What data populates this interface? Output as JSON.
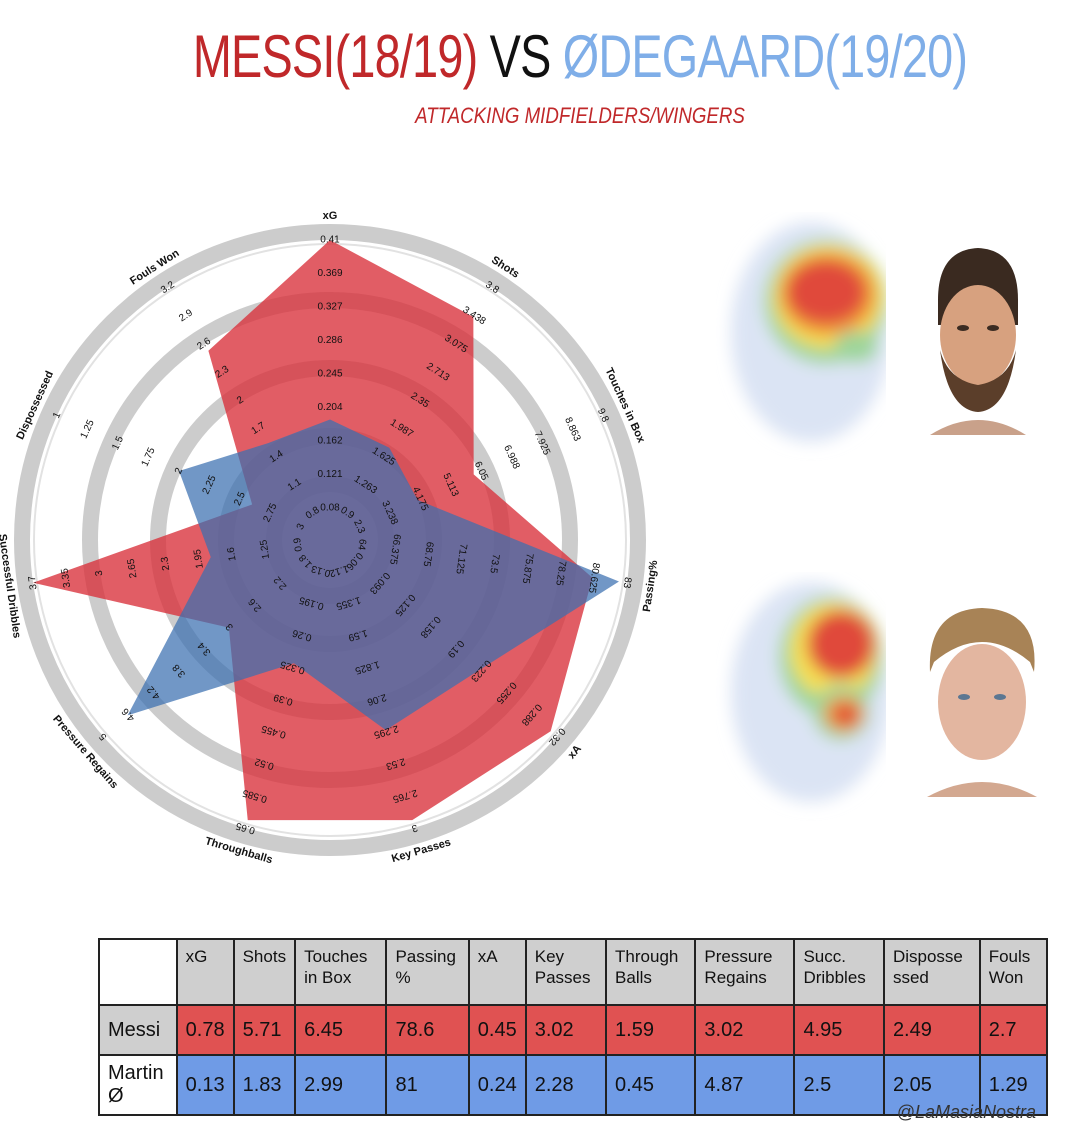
{
  "title": {
    "player1": "MESSI(18/19)",
    "vs": "VS",
    "player2": "ØDEGAARD(19/20)"
  },
  "subtitle": "ATTACKING MIDFIELDERS/WINGERS",
  "credit": "@LaMasiaNostra",
  "colors": {
    "messi": "#d9303a",
    "odegaard": "#3a6fb0",
    "title_red": "#c0282a",
    "title_blue": "#7faee8"
  },
  "chart_data": {
    "type": "radar",
    "axes": [
      {
        "label": "xG",
        "ticks": [
          "0.08",
          "0.121",
          "0.162",
          "0.204",
          "0.245",
          "0.286",
          "0.327",
          "0.369",
          "0.41"
        ]
      },
      {
        "label": "Shots",
        "ticks": [
          "0.9",
          "1.263",
          "1.625",
          "1.987",
          "2.35",
          "2.713",
          "3.075",
          "3.438",
          "3.8"
        ]
      },
      {
        "label": "Touches in Box",
        "ticks": [
          "2.3",
          "3.238",
          "4.175",
          "5.113",
          "6.05",
          "6.988",
          "7.925",
          "8.863",
          "9.8"
        ]
      },
      {
        "label": "Passing%",
        "ticks": [
          "64",
          "66.375",
          "68.75",
          "71.125",
          "73.5",
          "75.875",
          "78.25",
          "80.625",
          "83"
        ]
      },
      {
        "label": "xA",
        "ticks": [
          "0.06",
          "0.093",
          "0.125",
          "0.158",
          "0.19",
          "0.223",
          "0.255",
          "0.288",
          "0.32"
        ]
      },
      {
        "label": "Key Passes",
        "ticks": [
          "1.12",
          "1.355",
          "1.59",
          "1.825",
          "2.06",
          "2.295",
          "2.53",
          "2.765",
          "3"
        ]
      },
      {
        "label": "Throughballs",
        "ticks": [
          "0.13",
          "0.195",
          "0.26",
          "0.325",
          "0.39",
          "0.455",
          "0.52",
          "0.585",
          "0.65"
        ]
      },
      {
        "label": "Pressure Regains",
        "ticks": [
          "1.8",
          "2.2",
          "2.6",
          "3",
          "3.4",
          "3.8",
          "4.2",
          "4.6",
          "5"
        ]
      },
      {
        "label": "Successful Dribbles",
        "ticks": [
          "0.9",
          "1.25",
          "1.6",
          "1.95",
          "2.3",
          "2.65",
          "3",
          "3.35",
          "3.7"
        ]
      },
      {
        "label": "Dispossessed",
        "ticks": [
          "3",
          "2.75",
          "2.5",
          "2.25",
          "2",
          "1.75",
          "1.5",
          "1.25",
          "1"
        ]
      },
      {
        "label": "Fouls Won",
        "ticks": [
          "0.8",
          "1.1",
          "1.4",
          "1.7",
          "2",
          "2.3",
          "2.6",
          "2.9",
          "3.2"
        ]
      }
    ],
    "series": [
      {
        "name": "Messi",
        "values": [
          1.0,
          0.87,
          0.47,
          0.87,
          0.97,
          0.97,
          0.97,
          0.38,
          1.0,
          0.2,
          0.72
        ]
      },
      {
        "name": "Martin Ø",
        "values": [
          0.33,
          0.29,
          0.24,
          0.97,
          0.62,
          0.62,
          0.36,
          0.88,
          0.33,
          0.5,
          0.31
        ]
      }
    ]
  },
  "table": {
    "headers": [
      "xG",
      "Shots",
      "Touches in Box",
      "Passing %",
      "xA",
      "Key Passes",
      "Through Balls",
      "Pressure Regains",
      "Succ. Dribbles",
      "Disposse ssed",
      "Fouls Won"
    ],
    "rows": [
      {
        "name": "Messi",
        "values": [
          "0.78",
          "5.71",
          "6.45",
          "78.6",
          "0.45",
          "3.02",
          "1.59",
          "3.02",
          "4.95",
          "2.49",
          "2.7"
        ]
      },
      {
        "name": "Martin Ø",
        "values": [
          "0.13",
          "1.83",
          "2.99",
          "81",
          "0.24",
          "2.28",
          "0.45",
          "4.87",
          "2.5",
          "2.05",
          "1.29"
        ]
      }
    ]
  },
  "images": {
    "heatmap_messi": "heatmap",
    "heatmap_odegaard": "heatmap",
    "face_messi": "player-portrait",
    "face_odegaard": "player-portrait"
  }
}
